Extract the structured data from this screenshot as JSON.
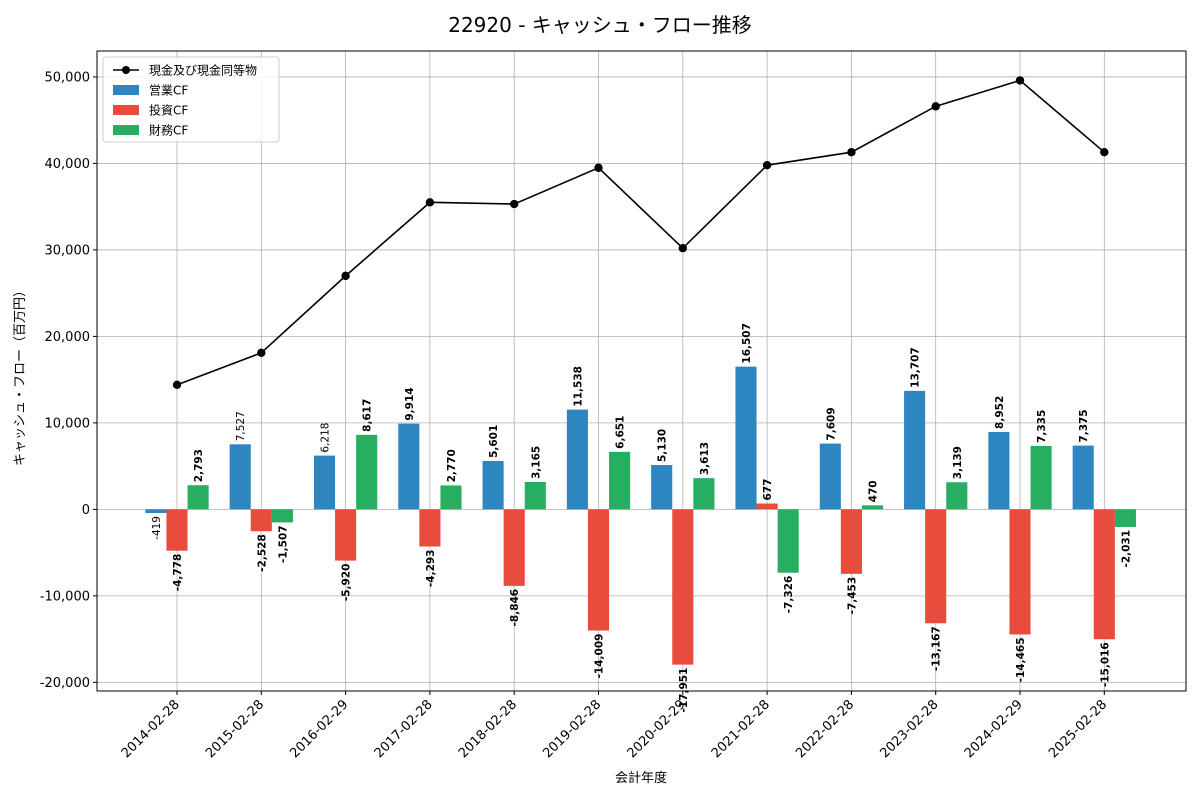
{
  "chart_data": {
    "type": "bar",
    "title": "22920 - キャッシュ・フロー推移",
    "xlabel": "会計年度",
    "ylabel": "キャッシュ・フロー（百万円）",
    "ylim": [
      -21000,
      53000
    ],
    "yticks": [
      -20000,
      -10000,
      0,
      10000,
      20000,
      30000,
      40000,
      50000
    ],
    "ytick_labels": [
      "-20,000",
      "-10,000",
      "0",
      "10,000",
      "20,000",
      "30,000",
      "40,000",
      "50,000"
    ],
    "grid": true,
    "legend_position": "top-left",
    "categories": [
      "2014-02-28",
      "2015-02-28",
      "2016-02-29",
      "2017-02-28",
      "2018-02-28",
      "2019-02-28",
      "2020-02-29",
      "2021-02-28",
      "2022-02-28",
      "2023-02-28",
      "2024-02-29",
      "2025-02-28"
    ],
    "series": [
      {
        "name": "営業CF",
        "type": "bar",
        "color": "#2e86c1",
        "values": [
          -419,
          7527,
          6218,
          9914,
          5601,
          11538,
          5130,
          16507,
          7609,
          13707,
          8952,
          7375
        ],
        "labels": [
          "-419",
          "7,527",
          "6,218",
          "9,914",
          "5,601",
          "11,538",
          "5,130",
          "16,507",
          "7,609",
          "13,707",
          "8,952",
          "7,375"
        ]
      },
      {
        "name": "投資CF",
        "type": "bar",
        "color": "#e74c3c",
        "values": [
          -4778,
          -2528,
          -5920,
          -4293,
          -8846,
          -14009,
          -17951,
          677,
          -7453,
          -13167,
          -14465,
          -15016
        ],
        "labels": [
          "-4,778",
          "-2,528",
          "-5,920",
          "-4,293",
          "-8,846",
          "-14,009",
          "-17,951",
          "677",
          "-7,453",
          "-13,167",
          "-14,465",
          "-15,016"
        ]
      },
      {
        "name": "財務CF",
        "type": "bar",
        "color": "#27ae60",
        "values": [
          2793,
          -1507,
          8617,
          2770,
          3165,
          6651,
          3613,
          -7326,
          470,
          3139,
          7335,
          -2031
        ],
        "labels": [
          "2,793",
          "-1,507",
          "8,617",
          "2,770",
          "3,165",
          "6,651",
          "3,613",
          "-7,326",
          "470",
          "3,139",
          "7,335",
          "-2,031"
        ]
      },
      {
        "name": "現金及び現金同等物",
        "type": "line",
        "color": "#000000",
        "values": [
          14400,
          18100,
          27000,
          35500,
          35300,
          39500,
          30200,
          39800,
          41300,
          46600,
          49600,
          41300
        ]
      }
    ]
  }
}
